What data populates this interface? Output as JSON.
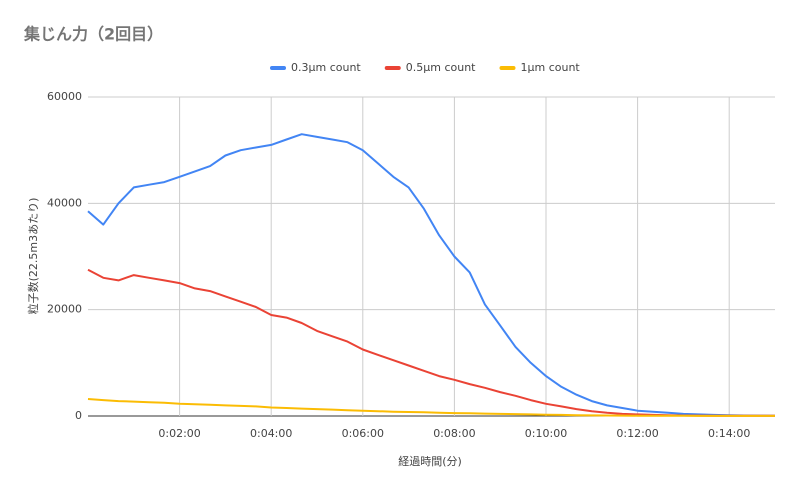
{
  "chart_data": {
    "type": "line",
    "title": "集じん力（2回目）",
    "x_label": "経過時間(分)",
    "y_label": "粒子数(22.5m3あたり)",
    "x": [
      0,
      20,
      40,
      60,
      80,
      100,
      120,
      140,
      160,
      180,
      200,
      220,
      240,
      260,
      280,
      300,
      320,
      340,
      360,
      380,
      400,
      420,
      440,
      460,
      480,
      500,
      520,
      540,
      560,
      580,
      600,
      620,
      640,
      660,
      680,
      700,
      720,
      740,
      760,
      780,
      800,
      820,
      840,
      860,
      880,
      900
    ],
    "series": [
      {
        "name": "0.3µm count",
        "color": "#4285f4",
        "values": [
          38500,
          36000,
          40000,
          43000,
          43500,
          44000,
          45000,
          46000,
          47000,
          49000,
          50000,
          50500,
          51000,
          52000,
          53000,
          52500,
          52000,
          51500,
          50000,
          47500,
          45000,
          43000,
          39000,
          34000,
          30000,
          27000,
          21000,
          17000,
          13000,
          10000,
          7500,
          5500,
          4000,
          2800,
          2000,
          1500,
          1000,
          800,
          600,
          400,
          300,
          200,
          150,
          100,
          80,
          60
        ]
      },
      {
        "name": "0.5µm count",
        "color": "#ea4335",
        "values": [
          27500,
          26000,
          25500,
          26500,
          26000,
          25500,
          25000,
          24000,
          23500,
          22500,
          21500,
          20500,
          19000,
          18500,
          17500,
          16000,
          15000,
          14000,
          12500,
          11500,
          10500,
          9500,
          8500,
          7500,
          6800,
          6000,
          5300,
          4500,
          3800,
          3000,
          2300,
          1800,
          1300,
          900,
          600,
          400,
          300,
          200,
          150,
          100,
          80,
          60,
          50,
          40,
          30,
          30
        ]
      },
      {
        "name": "1µm count",
        "color": "#fbbc04",
        "values": [
          3200,
          3000,
          2800,
          2700,
          2600,
          2500,
          2300,
          2200,
          2100,
          2000,
          1900,
          1800,
          1600,
          1500,
          1400,
          1300,
          1200,
          1100,
          1000,
          900,
          800,
          750,
          700,
          600,
          550,
          500,
          450,
          400,
          350,
          300,
          250,
          200,
          150,
          120,
          100,
          80,
          60,
          50,
          40,
          30,
          20,
          20,
          10,
          10,
          10,
          10
        ]
      }
    ],
    "xlim": [
      0,
      900
    ],
    "ylim": [
      0,
      60000
    ],
    "xticks": [
      {
        "value": 120,
        "label": "0:02:00"
      },
      {
        "value": 240,
        "label": "0:04:00"
      },
      {
        "value": 360,
        "label": "0:06:00"
      },
      {
        "value": 480,
        "label": "0:08:00"
      },
      {
        "value": 600,
        "label": "0:10:00"
      },
      {
        "value": 720,
        "label": "0:12:00"
      },
      {
        "value": 840,
        "label": "0:14:00"
      }
    ],
    "yticks": [
      0,
      20000,
      40000,
      60000
    ],
    "grid": true,
    "legend": "top"
  }
}
